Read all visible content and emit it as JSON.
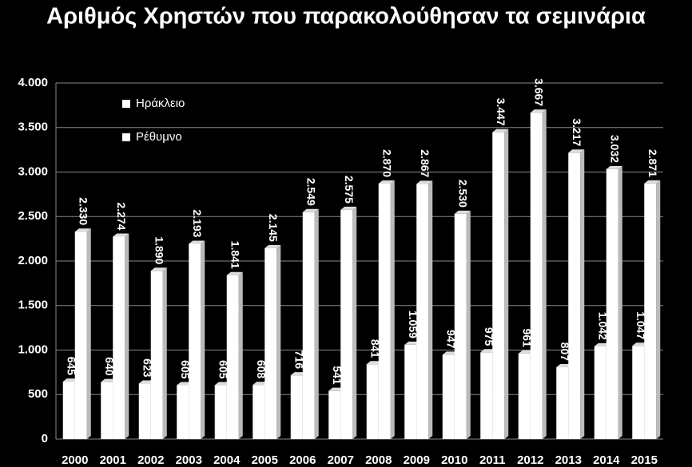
{
  "chart_data": {
    "type": "bar",
    "title": "Αριθμός Χρηστών που παρακολούθησαν τα σεμινάρια",
    "categories": [
      "2000",
      "2001",
      "2002",
      "2003",
      "2004",
      "2005",
      "2006",
      "2007",
      "2008",
      "2009",
      "2010",
      "2011",
      "2012",
      "2013",
      "2014",
      "2015"
    ],
    "series": [
      {
        "name": "Ηράκλειο",
        "color": "#ffffff",
        "values": [
          645,
          640,
          623,
          605,
          605,
          608,
          716,
          541,
          841,
          1059,
          947,
          975,
          961,
          807,
          1042,
          1047
        ],
        "value_labels": [
          "645",
          "640",
          "623",
          "605",
          "605",
          "608",
          "716",
          "541",
          "841",
          "1.059",
          "947",
          "975",
          "961",
          "807",
          "1.042",
          "1.047"
        ]
      },
      {
        "name": "Ρέθυμνο",
        "color": "#ffffff",
        "values": [
          2330,
          2274,
          1890,
          2193,
          1841,
          2145,
          2549,
          2575,
          2870,
          2867,
          2530,
          3447,
          3667,
          3217,
          3032,
          2871
        ],
        "value_labels": [
          "2.330",
          "2.274",
          "1.890",
          "2.193",
          "1.841",
          "2.145",
          "2.549",
          "2.575",
          "2.870",
          "2.867",
          "2.530",
          "3.447",
          "3.667",
          "3.217",
          "3.032",
          "2.871"
        ]
      }
    ],
    "ylim": [
      0,
      4000
    ],
    "yticks": [
      0,
      500,
      {
        "value": 1000,
        "label": "1.000"
      },
      {
        "value": 1500,
        "label": "1.500"
      },
      {
        "value": 2000,
        "label": "2.000"
      },
      {
        "value": 2500,
        "label": "2.500"
      },
      {
        "value": 3000,
        "label": "3.000"
      },
      {
        "value": 3500,
        "label": "3.500"
      },
      {
        "value": 4000,
        "label": "4.000"
      }
    ],
    "grid": true,
    "legend": "top-left"
  }
}
